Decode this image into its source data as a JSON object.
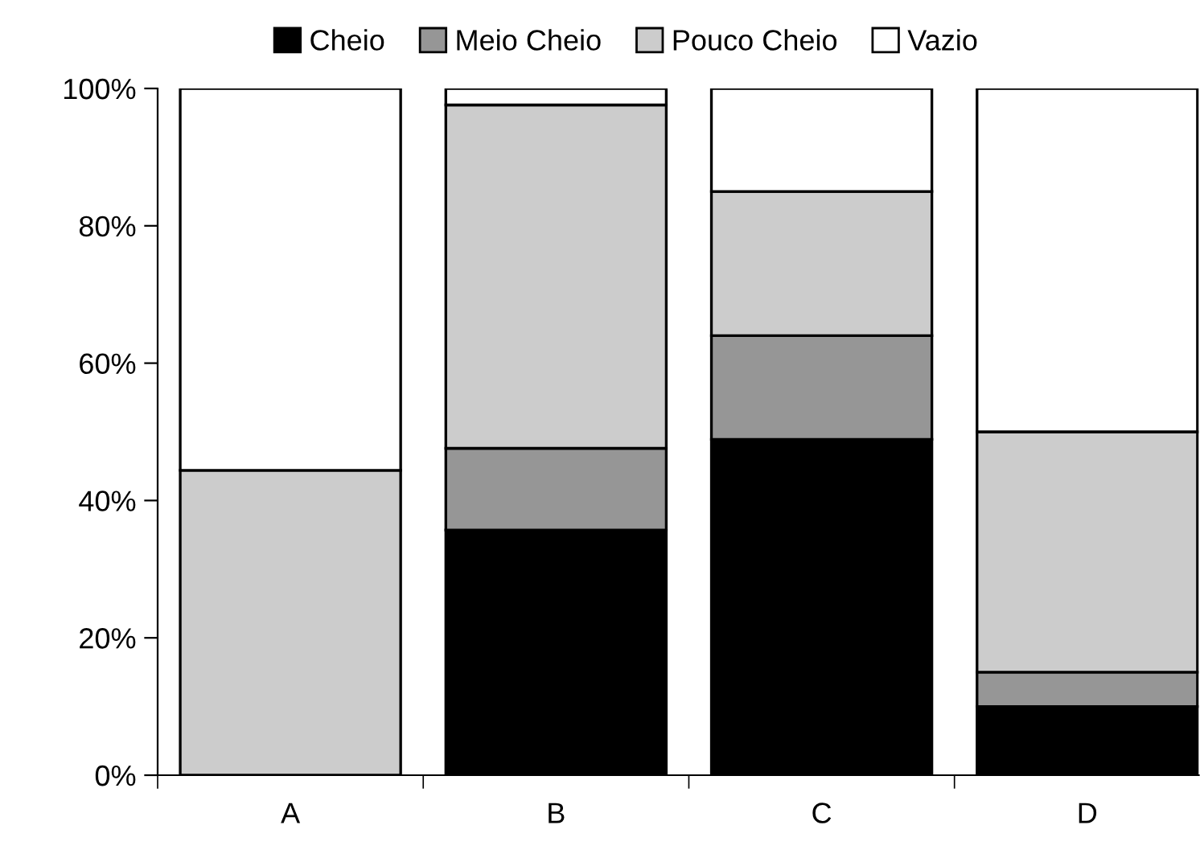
{
  "chart_data": {
    "type": "bar",
    "stacked": true,
    "categories": [
      "A",
      "B",
      "C",
      "D"
    ],
    "series": [
      {
        "name": "Cheio",
        "color": "#000000",
        "values": [
          0,
          35.7,
          48.9,
          10
        ]
      },
      {
        "name": "Meio Cheio",
        "color": "#969696",
        "values": [
          0,
          11.9,
          15.1,
          5
        ]
      },
      {
        "name": "Pouco Cheio",
        "color": "#cccccc",
        "values": [
          44.4,
          50,
          21,
          35
        ]
      },
      {
        "name": "Vazio",
        "color": "#ffffff",
        "values": [
          55.6,
          2.4,
          15,
          50
        ]
      }
    ],
    "ylim": [
      0,
      100
    ],
    "yticks": [
      {
        "value": 0,
        "label": "0%"
      },
      {
        "value": 20,
        "label": "20%"
      },
      {
        "value": 40,
        "label": "40%"
      },
      {
        "value": 60,
        "label": "60%"
      },
      {
        "value": 80,
        "label": "80%"
      },
      {
        "value": 100,
        "label": "100%"
      }
    ],
    "grid": false,
    "legend": "top"
  }
}
